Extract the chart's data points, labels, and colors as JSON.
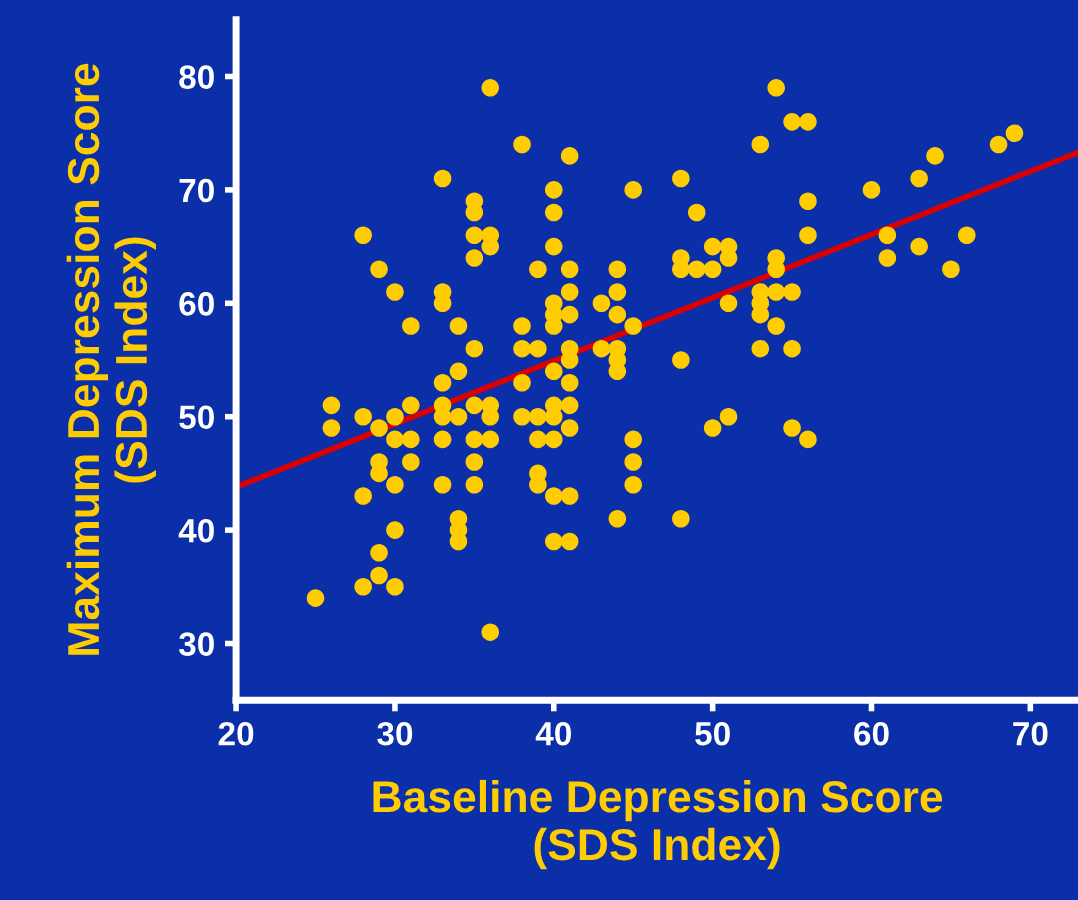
{
  "chart_data": {
    "type": "scatter",
    "xlabel": "Baseline Depression Score\n(SDS Index)",
    "ylabel": "Maximum Depression Score\n(SDS Index)",
    "xlim": [
      20,
      73
    ],
    "ylim": [
      25,
      85
    ],
    "xticks": [
      20,
      30,
      40,
      50,
      60,
      70
    ],
    "yticks": [
      30,
      40,
      50,
      60,
      70,
      80
    ],
    "grid": false,
    "legend": false,
    "series": [
      {
        "marker": "circle",
        "color": "#ffcc00",
        "x": [
          36,
          38,
          41,
          33,
          35,
          35,
          40,
          40,
          40,
          28,
          35,
          36,
          36,
          35,
          29,
          39,
          41,
          30,
          33,
          33,
          40,
          40,
          40,
          41,
          41,
          31,
          34,
          38,
          35,
          38,
          39,
          41,
          41,
          34,
          40,
          33,
          38,
          41,
          26,
          26,
          28,
          29,
          30,
          31,
          33,
          33,
          34,
          35,
          36,
          36,
          38,
          39,
          40,
          40,
          41,
          41,
          30,
          31,
          33,
          35,
          36,
          39,
          40,
          29,
          29,
          31,
          35,
          30,
          33,
          35,
          39,
          39,
          28,
          40,
          41,
          34,
          34,
          34,
          30,
          40,
          41,
          29,
          29,
          28,
          30,
          25,
          36,
          54,
          55,
          56,
          53,
          45,
          48,
          49,
          56,
          56,
          60,
          63,
          64,
          68,
          69,
          61,
          61,
          63,
          66,
          65,
          50,
          51,
          51,
          48,
          48,
          49,
          50,
          54,
          54,
          44,
          44,
          43,
          44,
          45,
          51,
          53,
          53,
          53,
          54,
          55,
          54,
          53,
          55,
          48,
          43,
          44,
          44,
          44,
          45,
          45,
          45,
          50,
          51,
          55,
          56,
          44,
          48
        ],
        "values": [
          79,
          74,
          73,
          71,
          69,
          68,
          70,
          68,
          65,
          66,
          66,
          66,
          65,
          64,
          63,
          63,
          63,
          61,
          61,
          60,
          60,
          59,
          58,
          61,
          59,
          58,
          58,
          58,
          56,
          56,
          56,
          56,
          55,
          54,
          54,
          53,
          53,
          53,
          51,
          49,
          50,
          49,
          50,
          51,
          51,
          50,
          50,
          51,
          51,
          50,
          50,
          50,
          51,
          50,
          51,
          49,
          48,
          48,
          48,
          48,
          48,
          48,
          48,
          46,
          45,
          46,
          46,
          44,
          44,
          44,
          45,
          44,
          43,
          43,
          43,
          41,
          40,
          39,
          40,
          39,
          39,
          38,
          36,
          35,
          35,
          34,
          31,
          79,
          76,
          76,
          74,
          70,
          71,
          68,
          69,
          66,
          70,
          71,
          73,
          74,
          75,
          66,
          64,
          65,
          66,
          63,
          65,
          65,
          64,
          64,
          63,
          63,
          63,
          64,
          63,
          63,
          61,
          60,
          59,
          58,
          60,
          61,
          60,
          59,
          61,
          61,
          58,
          56,
          56,
          55,
          56,
          56,
          55,
          54,
          48,
          46,
          44,
          49,
          50,
          49,
          48,
          41,
          41
        ]
      },
      {
        "type": "line",
        "color": "#dd0000",
        "x": [
          20,
          73
        ],
        "values": [
          43.8,
          73.3
        ]
      }
    ]
  }
}
